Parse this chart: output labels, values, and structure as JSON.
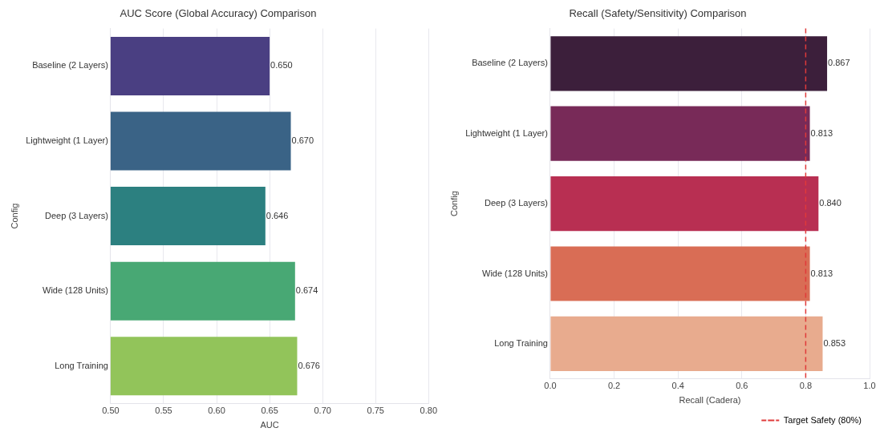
{
  "chart_data": [
    {
      "type": "bar",
      "orientation": "horizontal",
      "title": "AUC Score (Global Accuracy) Comparison",
      "xlabel": "AUC",
      "ylabel": "Config",
      "categories": [
        "Baseline (2 Layers)",
        "Lightweight (1 Layer)",
        "Deep (3 Layers)",
        "Wide (128 Units)",
        "Long Training"
      ],
      "values": [
        0.65,
        0.67,
        0.646,
        0.674,
        0.676
      ],
      "value_labels": [
        "0.650",
        "0.670",
        "0.646",
        "0.674",
        "0.676"
      ],
      "colors": [
        "#4a3f82",
        "#3a6386",
        "#2c8080",
        "#48a874",
        "#92c45a"
      ],
      "xlim": [
        0.5,
        0.8
      ],
      "xticks": [
        {
          "value": 0.5,
          "label": "0.50"
        },
        {
          "value": 0.55,
          "label": "0.55"
        },
        {
          "value": 0.6,
          "label": "0.60"
        },
        {
          "value": 0.65,
          "label": "0.65"
        },
        {
          "value": 0.7,
          "label": "0.70"
        },
        {
          "value": 0.75,
          "label": "0.75"
        },
        {
          "value": 0.8,
          "label": "0.80"
        }
      ],
      "grid": "x"
    },
    {
      "type": "bar",
      "orientation": "horizontal",
      "title": "Recall (Safety/Sensitivity) Comparison",
      "xlabel": "Recall (Cadera)",
      "ylabel": "Config",
      "categories": [
        "Baseline (2 Layers)",
        "Lightweight (1 Layer)",
        "Deep (3 Layers)",
        "Wide (128 Units)",
        "Long Training"
      ],
      "values": [
        0.867,
        0.813,
        0.84,
        0.813,
        0.853
      ],
      "value_labels": [
        "0.867",
        "0.813",
        "0.840",
        "0.813",
        "0.853"
      ],
      "colors": [
        "#3c1f3b",
        "#782a58",
        "#b82f52",
        "#d96d55",
        "#e8ab8e"
      ],
      "xlim": [
        0,
        1
      ],
      "xticks": [
        {
          "value": 0,
          "label": "0.0"
        },
        {
          "value": 0.2,
          "label": "0.2"
        },
        {
          "value": 0.4,
          "label": "0.4"
        },
        {
          "value": 0.6,
          "label": "0.6"
        },
        {
          "value": 0.8,
          "label": "0.8"
        },
        {
          "value": 1,
          "label": "1.0"
        }
      ],
      "ref_lines": [
        {
          "axis": "x",
          "value": 0.8,
          "label": "Target Safety (80%)",
          "color": "#e03a3a",
          "line_style": "dashed"
        }
      ],
      "grid": "x",
      "legend": "bottom right"
    }
  ]
}
